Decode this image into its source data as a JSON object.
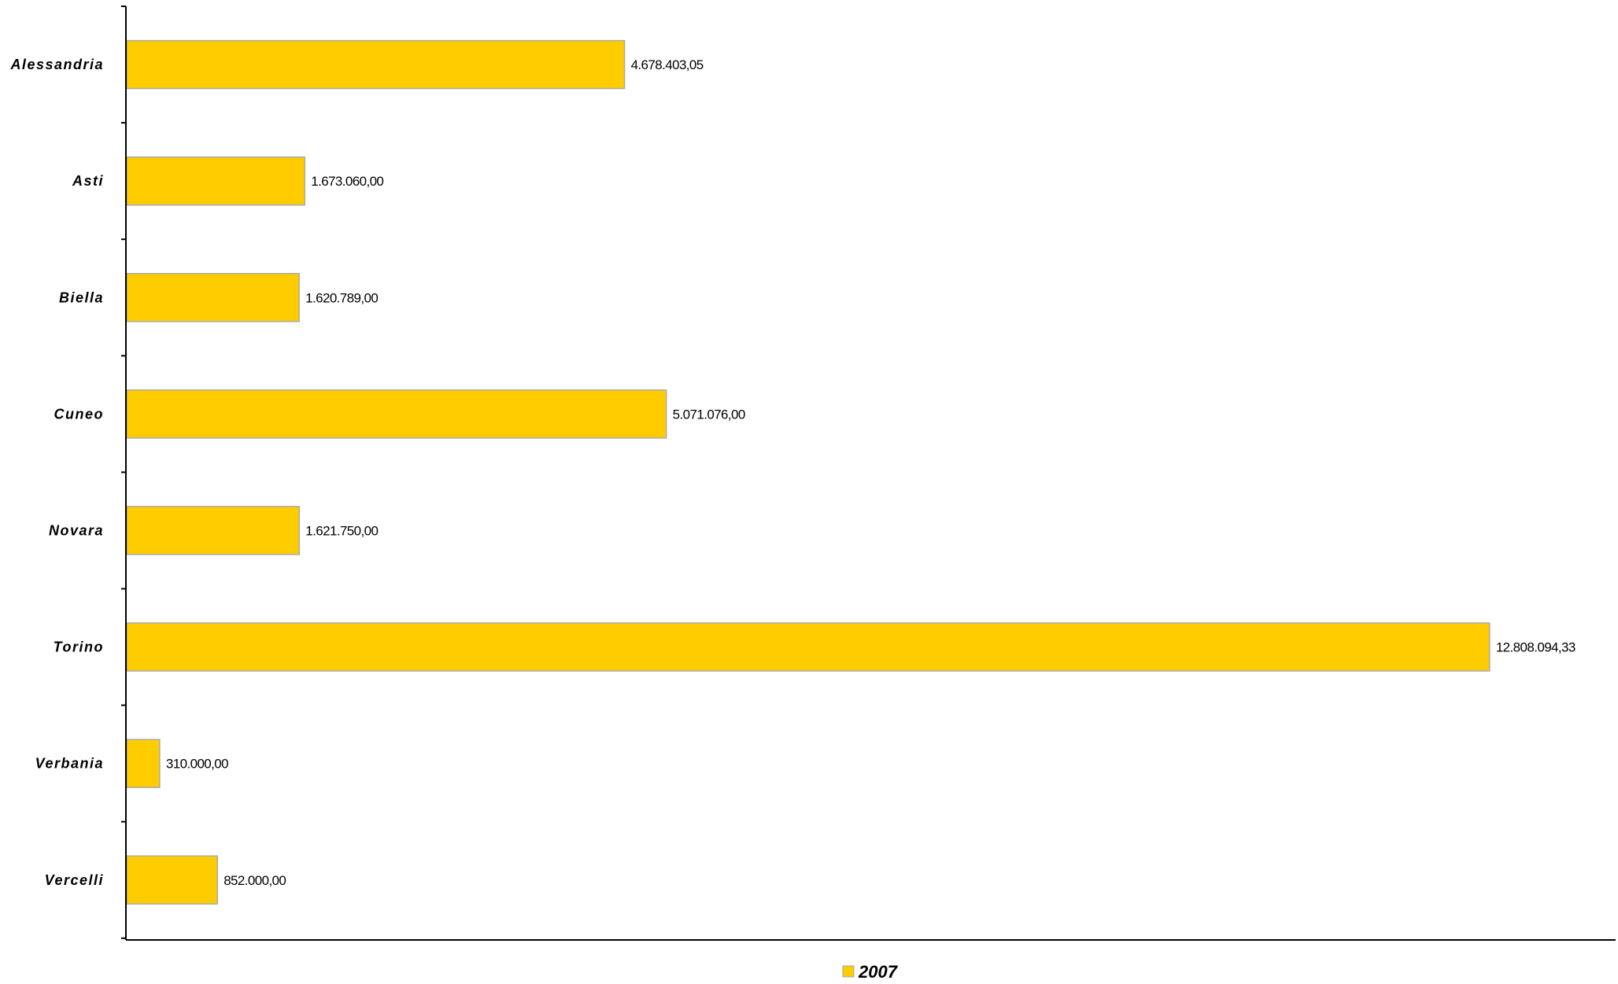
{
  "chart_data": {
    "type": "bar",
    "orientation": "horizontal",
    "title": "",
    "xlabel": "",
    "ylabel": "",
    "categories": [
      "Alessandria",
      "Asti",
      "Biella",
      "Cuneo",
      "Novara",
      "Torino",
      "Verbania",
      "Vercelli"
    ],
    "series": [
      {
        "name": "2007",
        "values": [
          4678403.05,
          1673060.0,
          1620789.0,
          5071076.0,
          1621750.0,
          12808094.33,
          310000.0,
          852000.0
        ],
        "labels": [
          "4.678.403,05",
          "1.673.060,00",
          "1.620.789,00",
          "5.071.076,00",
          "1.621.750,00",
          "12.808.094,33",
          "310.000,00",
          "852.000,00"
        ],
        "color": "#FFCC00"
      }
    ],
    "xlim": [
      0,
      14000000
    ],
    "value_axis_visible": false,
    "grid": false,
    "legend": {
      "position": "bottom"
    },
    "bar_border_color": "#AAAAAA",
    "axis_color": "#000000"
  }
}
